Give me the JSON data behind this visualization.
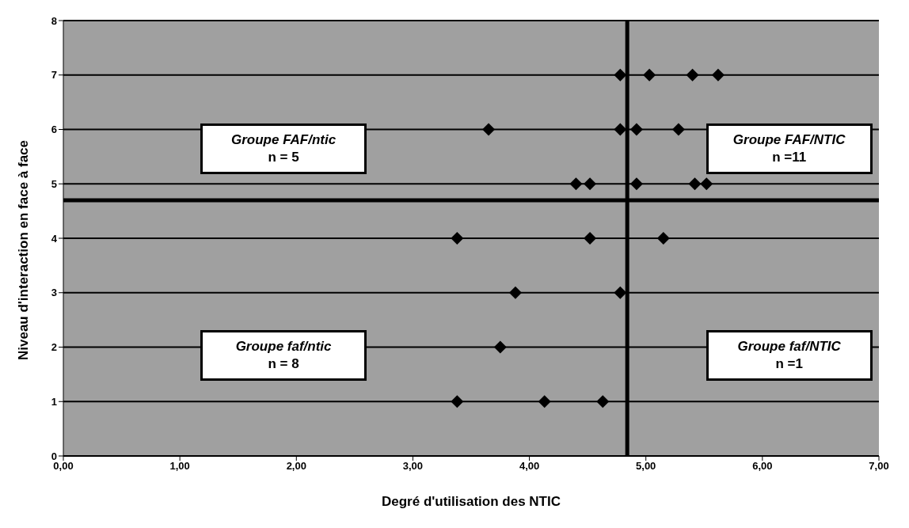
{
  "chart_data": {
    "type": "scatter",
    "xlabel": "Degré d'utilisation des NTIC",
    "ylabel": "Niveau d'interaction en face à face",
    "x": [
      4.78,
      5.03,
      5.4,
      5.62,
      3.65,
      4.78,
      4.92,
      5.28,
      4.4,
      4.52,
      4.92,
      5.42,
      5.52,
      3.38,
      4.52,
      5.15,
      3.88,
      4.78,
      3.75,
      3.38,
      4.13,
      4.63
    ],
    "values": [
      7,
      7,
      7,
      7,
      6,
      6,
      6,
      6,
      5,
      5,
      5,
      5,
      5,
      4,
      4,
      4,
      3,
      3,
      2,
      1,
      1,
      1
    ],
    "color": "#000000",
    "marker": "diamond",
    "grid": "y",
    "xlim": [
      0,
      7
    ],
    "xticks": [
      {
        "value": 0,
        "label": "0,00"
      },
      {
        "value": 1,
        "label": "1,00"
      },
      {
        "value": 2,
        "label": "2,00"
      },
      {
        "value": 3,
        "label": "3,00"
      },
      {
        "value": 4,
        "label": "4,00"
      },
      {
        "value": 5,
        "label": "5,00"
      },
      {
        "value": 6,
        "label": "6,00"
      },
      {
        "value": 7,
        "label": "7,00"
      }
    ],
    "ylim": [
      0,
      8
    ],
    "yticks": [
      0,
      1,
      2,
      3,
      4,
      5,
      6,
      7,
      8
    ],
    "ref_lines": [
      {
        "axis": "x",
        "value": 4.84,
        "color": "#000000"
      },
      {
        "axis": "y",
        "value": 4.7,
        "color": "#000000"
      }
    ],
    "annotations": [
      "Groupe FAF/ntic",
      "n = 5",
      "Groupe FAF/NTIC",
      "n =11",
      "Groupe faf/ntic",
      "n = 8",
      "Groupe faf/NTIC",
      "n =1"
    ]
  }
}
